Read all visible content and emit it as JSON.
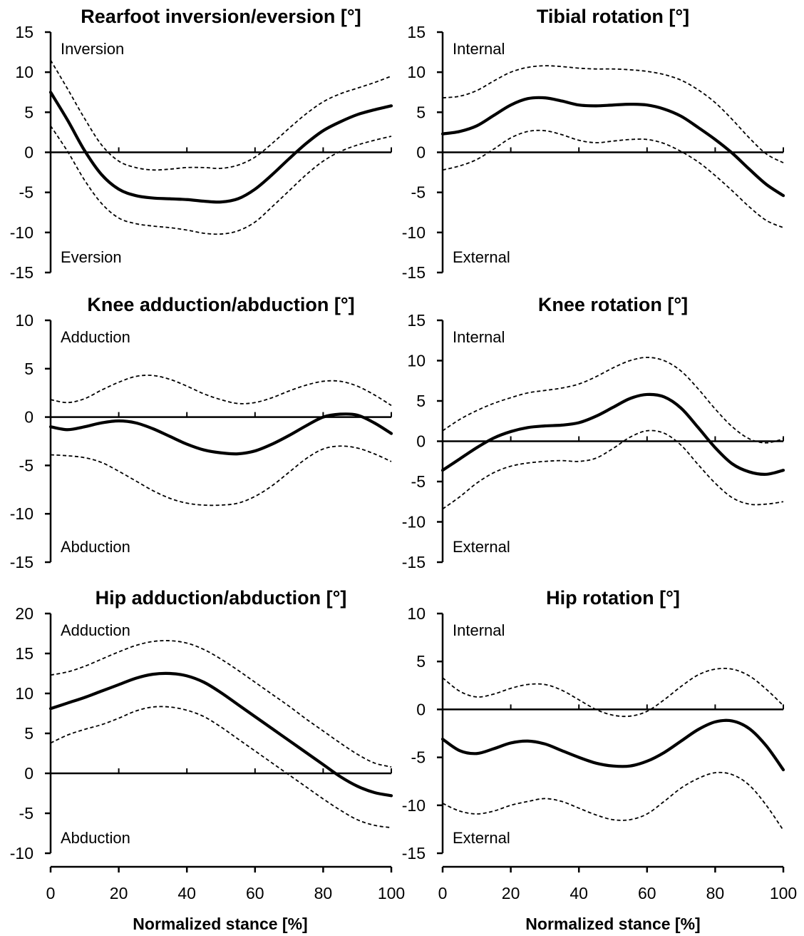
{
  "figure": {
    "xlabel": "Normalized stance [%]",
    "xticks": [
      0,
      20,
      40,
      60,
      80,
      100
    ]
  },
  "chart_data": [
    {
      "type": "line",
      "title": "Rearfoot inversion/eversion [°]",
      "xlim": [
        0,
        100
      ],
      "ylim": [
        -15,
        15
      ],
      "yticks": [
        15,
        10,
        5,
        0,
        -5,
        -10,
        -15
      ],
      "label_top": "Inversion",
      "label_bottom": "Eversion",
      "x": [
        0,
        5,
        10,
        15,
        20,
        25,
        30,
        35,
        40,
        45,
        50,
        55,
        60,
        65,
        70,
        75,
        80,
        85,
        90,
        95,
        100
      ],
      "series": [
        {
          "style": "mean",
          "values": [
            7.5,
            4.0,
            0.2,
            -2.8,
            -4.6,
            -5.4,
            -5.7,
            -5.8,
            -5.9,
            -6.1,
            -6.2,
            -5.8,
            -4.6,
            -2.8,
            -0.8,
            1.1,
            2.7,
            3.8,
            4.7,
            5.3,
            5.8
          ]
        },
        {
          "style": "sd-upper",
          "values": [
            11.5,
            7.9,
            4.2,
            0.9,
            -1.1,
            -1.9,
            -2.2,
            -2.1,
            -1.9,
            -1.9,
            -2.0,
            -1.6,
            -0.6,
            1.1,
            3.0,
            4.8,
            6.3,
            7.3,
            8.0,
            8.7,
            9.5
          ]
        },
        {
          "style": "sd-lower",
          "values": [
            3.3,
            0.1,
            -3.5,
            -6.4,
            -8.2,
            -8.9,
            -9.2,
            -9.4,
            -9.7,
            -10.1,
            -10.2,
            -9.8,
            -8.7,
            -6.8,
            -4.8,
            -2.8,
            -1.1,
            0.1,
            0.9,
            1.5,
            2.0
          ]
        }
      ]
    },
    {
      "type": "line",
      "title": "Tibial rotation [°]",
      "xlim": [
        0,
        100
      ],
      "ylim": [
        -15,
        15
      ],
      "yticks": [
        15,
        10,
        5,
        0,
        -5,
        -10,
        -15
      ],
      "label_top": "Internal",
      "label_bottom": "External",
      "x": [
        0,
        5,
        10,
        15,
        20,
        25,
        30,
        35,
        40,
        45,
        50,
        55,
        60,
        65,
        70,
        75,
        80,
        85,
        90,
        95,
        100
      ],
      "series": [
        {
          "style": "mean",
          "values": [
            2.3,
            2.6,
            3.3,
            4.6,
            5.9,
            6.7,
            6.8,
            6.4,
            5.9,
            5.8,
            5.9,
            6.0,
            5.9,
            5.4,
            4.5,
            3.1,
            1.6,
            -0.1,
            -2.1,
            -4.0,
            -5.4
          ]
        },
        {
          "style": "sd-upper",
          "values": [
            6.8,
            7.0,
            7.7,
            8.9,
            10.0,
            10.6,
            10.8,
            10.7,
            10.5,
            10.4,
            10.4,
            10.3,
            10.1,
            9.7,
            9.0,
            7.8,
            6.2,
            4.1,
            1.8,
            -0.2,
            -1.3
          ]
        },
        {
          "style": "sd-lower",
          "values": [
            -2.2,
            -1.7,
            -0.9,
            0.4,
            1.8,
            2.6,
            2.7,
            2.2,
            1.5,
            1.2,
            1.4,
            1.6,
            1.6,
            1.1,
            0.1,
            -1.2,
            -2.9,
            -4.8,
            -6.8,
            -8.5,
            -9.4
          ]
        }
      ]
    },
    {
      "type": "line",
      "title": "Knee adduction/abduction [°]",
      "xlim": [
        0,
        100
      ],
      "ylim": [
        -15,
        10
      ],
      "yticks": [
        10,
        5,
        0,
        -5,
        -10,
        -15
      ],
      "label_top": "Adduction",
      "label_bottom": "Abduction",
      "x": [
        0,
        5,
        10,
        15,
        20,
        25,
        30,
        35,
        40,
        45,
        50,
        55,
        60,
        65,
        70,
        75,
        80,
        85,
        90,
        95,
        100
      ],
      "series": [
        {
          "style": "mean",
          "values": [
            -1.0,
            -1.3,
            -1.0,
            -0.6,
            -0.4,
            -0.6,
            -1.2,
            -2.0,
            -2.8,
            -3.4,
            -3.7,
            -3.8,
            -3.5,
            -2.8,
            -1.9,
            -0.9,
            -0.0,
            0.3,
            0.2,
            -0.6,
            -1.7
          ]
        },
        {
          "style": "sd-upper",
          "values": [
            1.8,
            1.5,
            1.9,
            2.8,
            3.6,
            4.2,
            4.3,
            3.9,
            3.2,
            2.4,
            1.8,
            1.4,
            1.5,
            2.0,
            2.7,
            3.3,
            3.7,
            3.7,
            3.2,
            2.3,
            1.2
          ]
        },
        {
          "style": "sd-lower",
          "values": [
            -3.9,
            -4.0,
            -4.2,
            -4.7,
            -5.6,
            -6.6,
            -7.6,
            -8.4,
            -8.9,
            -9.1,
            -9.1,
            -8.9,
            -8.2,
            -7.1,
            -5.7,
            -4.3,
            -3.3,
            -3.0,
            -3.2,
            -3.8,
            -4.6
          ]
        }
      ]
    },
    {
      "type": "line",
      "title": "Knee rotation [°]",
      "xlim": [
        0,
        100
      ],
      "ylim": [
        -15,
        15
      ],
      "yticks": [
        15,
        10,
        5,
        0,
        -5,
        -10,
        -15
      ],
      "label_top": "Internal",
      "label_bottom": "External",
      "x": [
        0,
        5,
        10,
        15,
        20,
        25,
        30,
        35,
        40,
        45,
        50,
        55,
        60,
        65,
        70,
        75,
        80,
        85,
        90,
        95,
        100
      ],
      "series": [
        {
          "style": "mean",
          "values": [
            -3.6,
            -2.2,
            -0.8,
            0.4,
            1.2,
            1.7,
            1.9,
            2.0,
            2.3,
            3.1,
            4.2,
            5.3,
            5.8,
            5.5,
            4.1,
            1.7,
            -0.8,
            -2.8,
            -3.8,
            -4.1,
            -3.6
          ]
        },
        {
          "style": "sd-upper",
          "values": [
            1.3,
            2.7,
            3.8,
            4.7,
            5.4,
            6.0,
            6.3,
            6.6,
            7.1,
            8.0,
            9.1,
            10.0,
            10.4,
            10.0,
            8.7,
            6.5,
            4.0,
            1.8,
            0.3,
            -0.2,
            0.3
          ]
        },
        {
          "style": "sd-lower",
          "values": [
            -8.4,
            -6.9,
            -5.2,
            -3.9,
            -3.1,
            -2.7,
            -2.5,
            -2.4,
            -2.5,
            -2.1,
            -0.9,
            0.5,
            1.3,
            1.0,
            -0.5,
            -2.9,
            -5.2,
            -7.0,
            -7.8,
            -7.8,
            -7.5
          ]
        }
      ]
    },
    {
      "type": "line",
      "title": "Hip adduction/abduction [°]",
      "xlim": [
        0,
        100
      ],
      "ylim": [
        -10,
        20
      ],
      "yticks": [
        20,
        15,
        10,
        5,
        0,
        -5,
        -10
      ],
      "label_top": "Adduction",
      "label_bottom": "Abduction",
      "x": [
        0,
        5,
        10,
        15,
        20,
        25,
        30,
        35,
        40,
        45,
        50,
        55,
        60,
        65,
        70,
        75,
        80,
        85,
        90,
        95,
        100
      ],
      "series": [
        {
          "style": "mean",
          "values": [
            8.1,
            8.8,
            9.5,
            10.3,
            11.1,
            11.9,
            12.4,
            12.5,
            12.2,
            11.4,
            10.1,
            8.6,
            7.1,
            5.6,
            4.1,
            2.6,
            1.1,
            -0.4,
            -1.6,
            -2.4,
            -2.8
          ]
        },
        {
          "style": "sd-upper",
          "values": [
            12.3,
            12.7,
            13.4,
            14.3,
            15.2,
            16.0,
            16.5,
            16.6,
            16.3,
            15.5,
            14.3,
            12.9,
            11.4,
            9.9,
            8.4,
            6.8,
            5.3,
            3.8,
            2.4,
            1.3,
            0.8
          ]
        },
        {
          "style": "sd-lower",
          "values": [
            3.8,
            4.8,
            5.5,
            6.1,
            6.9,
            7.8,
            8.3,
            8.3,
            7.9,
            7.1,
            5.8,
            4.3,
            2.8,
            1.3,
            -0.2,
            -1.7,
            -3.2,
            -4.6,
            -5.8,
            -6.5,
            -6.8
          ]
        }
      ]
    },
    {
      "type": "line",
      "title": "Hip rotation [°]",
      "xlim": [
        0,
        100
      ],
      "ylim": [
        -15,
        10
      ],
      "yticks": [
        10,
        5,
        0,
        -5,
        -10,
        -15
      ],
      "label_top": "Internal",
      "label_bottom": "External",
      "x": [
        0,
        5,
        10,
        15,
        20,
        25,
        30,
        35,
        40,
        45,
        50,
        55,
        60,
        65,
        70,
        75,
        80,
        85,
        90,
        95,
        100
      ],
      "series": [
        {
          "style": "mean",
          "values": [
            -3.1,
            -4.3,
            -4.6,
            -4.1,
            -3.5,
            -3.3,
            -3.6,
            -4.3,
            -5.0,
            -5.6,
            -5.9,
            -5.9,
            -5.4,
            -4.5,
            -3.3,
            -2.1,
            -1.3,
            -1.2,
            -2.0,
            -3.8,
            -6.3
          ]
        },
        {
          "style": "sd-upper",
          "values": [
            3.3,
            1.9,
            1.3,
            1.6,
            2.2,
            2.6,
            2.6,
            2.0,
            1.0,
            -0.0,
            -0.6,
            -0.7,
            -0.2,
            1.0,
            2.4,
            3.6,
            4.2,
            4.2,
            3.5,
            2.1,
            0.4
          ]
        },
        {
          "style": "sd-lower",
          "values": [
            -9.8,
            -10.6,
            -10.9,
            -10.6,
            -10.0,
            -9.6,
            -9.3,
            -9.6,
            -10.3,
            -11.0,
            -11.5,
            -11.5,
            -10.9,
            -9.6,
            -8.2,
            -7.2,
            -6.6,
            -6.8,
            -7.9,
            -10.0,
            -12.6
          ]
        }
      ]
    }
  ]
}
